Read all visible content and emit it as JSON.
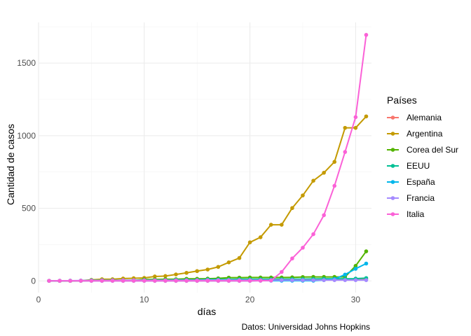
{
  "chart_data": {
    "type": "line",
    "xlabel": "días",
    "ylabel": "Cantidad de casos",
    "caption": "Datos: Universidad Johns Hopkins",
    "legend_title": "Países",
    "legend_position": "right",
    "grid": true,
    "xlim": [
      0,
      31.5
    ],
    "ylim": [
      -80,
      1780
    ],
    "x_ticks": [
      0,
      10,
      20,
      30
    ],
    "y_ticks": [
      0,
      500,
      1000,
      1500
    ],
    "x": [
      1,
      2,
      3,
      4,
      5,
      6,
      7,
      8,
      9,
      10,
      11,
      12,
      13,
      14,
      15,
      16,
      17,
      18,
      19,
      20,
      21,
      22,
      23,
      24,
      25,
      26,
      27,
      28,
      29,
      30,
      31
    ],
    "series": [
      {
        "name": "Alemania",
        "color": "#F8766D",
        "values": [
          1,
          1,
          1,
          1,
          2,
          2,
          3,
          3,
          4,
          4,
          5,
          5,
          5,
          6,
          6,
          7,
          7,
          7,
          8,
          8,
          8,
          9,
          9,
          9,
          10,
          10,
          10,
          11,
          11,
          11,
          12
        ]
      },
      {
        "name": "Argentina",
        "color": "#C49A00",
        "values": [
          1,
          1,
          1,
          2,
          8,
          12,
          12,
          17,
          19,
          21,
          31,
          34,
          45,
          56,
          68,
          79,
          97,
          128,
          158,
          266,
          301,
          387,
          387,
          502,
          589,
          690,
          745,
          820,
          1054,
          1054,
          1133
        ]
      },
      {
        "name": "Corea del Sur",
        "color": "#53B400",
        "values": [
          1,
          1,
          1,
          2,
          3,
          4,
          4,
          4,
          4,
          11,
          11,
          12,
          12,
          15,
          15,
          16,
          18,
          23,
          23,
          24,
          24,
          24,
          24,
          25,
          27,
          28,
          28,
          28,
          28,
          104,
          204
        ]
      },
      {
        "name": "EEUU",
        "color": "#00C094",
        "values": [
          1,
          1,
          2,
          2,
          5,
          5,
          5,
          5,
          5,
          5,
          6,
          6,
          8,
          8,
          8,
          11,
          11,
          11,
          12,
          12,
          12,
          12,
          12,
          13,
          13,
          14,
          15,
          15,
          15,
          16,
          20
        ]
      },
      {
        "name": "España",
        "color": "#00B6EB",
        "values": [
          1,
          1,
          1,
          1,
          1,
          1,
          1,
          1,
          1,
          1,
          1,
          1,
          1,
          1,
          1,
          1,
          1,
          1,
          1,
          1,
          2,
          2,
          2,
          2,
          2,
          2,
          6,
          13,
          44,
          84,
          120
        ]
      },
      {
        "name": "Francia",
        "color": "#A58AFF",
        "values": [
          1,
          2,
          2,
          3,
          3,
          4,
          4,
          5,
          5,
          5,
          5,
          5,
          5,
          5,
          5,
          6,
          6,
          6,
          6,
          6,
          6,
          6,
          6,
          6,
          6,
          6,
          6,
          6,
          6,
          6,
          6
        ]
      },
      {
        "name": "Italia",
        "color": "#FB61D7",
        "values": [
          1,
          1,
          1,
          1,
          1,
          1,
          1,
          1,
          1,
          1,
          1,
          1,
          1,
          1,
          1,
          1,
          1,
          1,
          1,
          1,
          2,
          3,
          62,
          155,
          229,
          322,
          453,
          655,
          888,
          1128,
          1694
        ]
      }
    ]
  }
}
